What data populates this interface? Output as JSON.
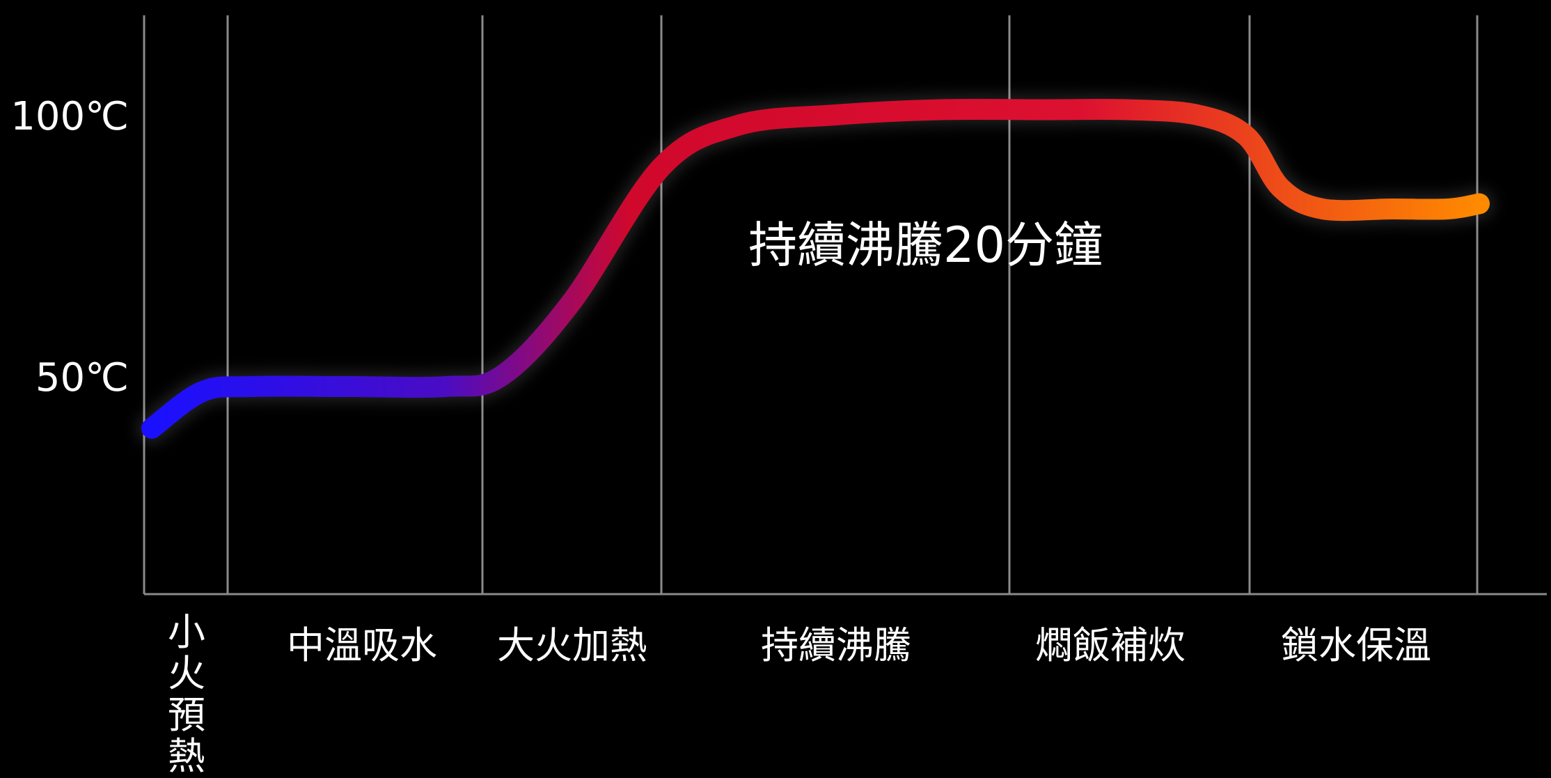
{
  "chart_data": {
    "type": "line",
    "title": "",
    "xlabel": "",
    "ylabel": "",
    "y_ticks": [
      "100℃",
      "50℃"
    ],
    "stages": [
      "小火預熱",
      "中溫吸水",
      "大火加熱",
      "持續沸騰",
      "燜飯補炊",
      "鎖水保溫"
    ],
    "annotation": "持續沸騰20分鐘",
    "series": [
      {
        "values": [
          40,
          47,
          48,
          48,
          48,
          50,
          64,
          90,
          98,
          100,
          101,
          101,
          101,
          100,
          96,
          86,
          82,
          82,
          82,
          83
        ]
      }
    ],
    "gradient_colors": [
      "#1a10ff",
      "#4a0cc4",
      "#d0082c",
      "#dd1030",
      "#ff8a00"
    ],
    "grid": true
  }
}
